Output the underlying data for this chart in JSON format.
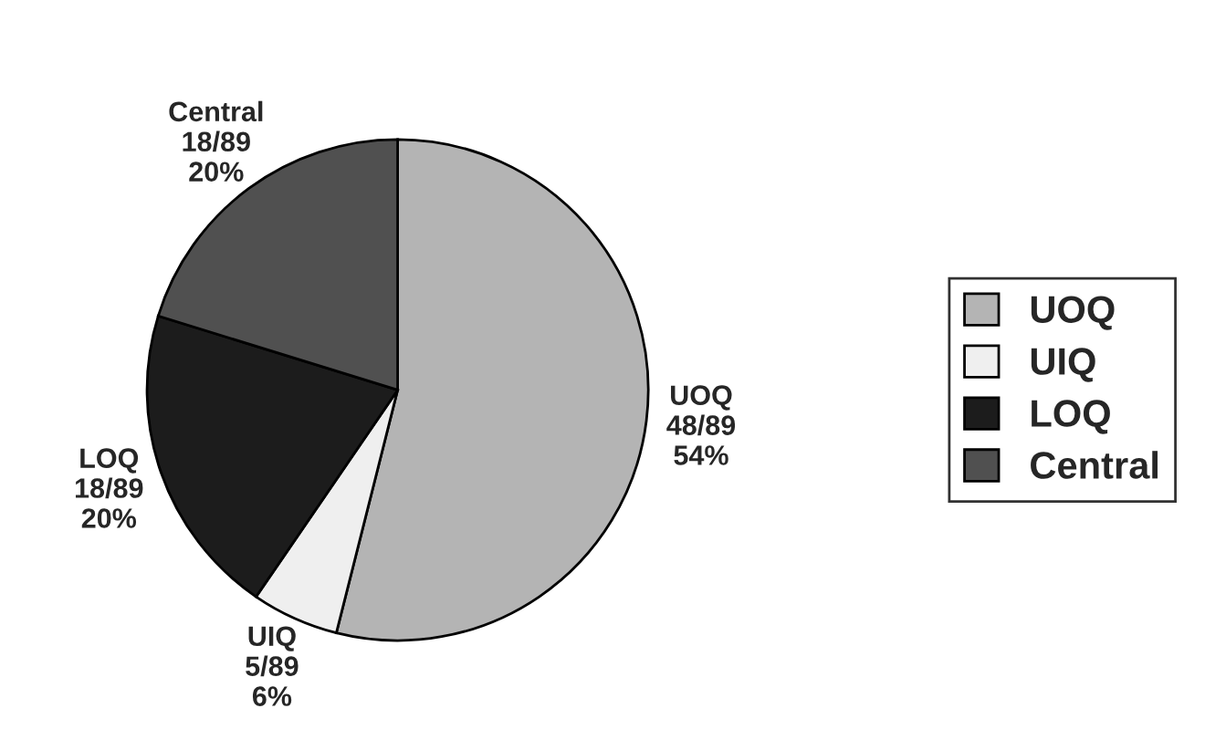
{
  "chart_data": {
    "type": "pie",
    "categories": [
      "UOQ",
      "UIQ",
      "LOQ",
      "Central"
    ],
    "values": [
      48,
      5,
      18,
      18
    ],
    "value_labels": [
      "48/89\n54%",
      "5/89\n6%",
      "18/89\n20%",
      "18/89\n20%"
    ],
    "colors": [
      "#b4b4b4",
      "#efefef",
      "#1c1c1c",
      "#505050"
    ],
    "legend": "right"
  }
}
